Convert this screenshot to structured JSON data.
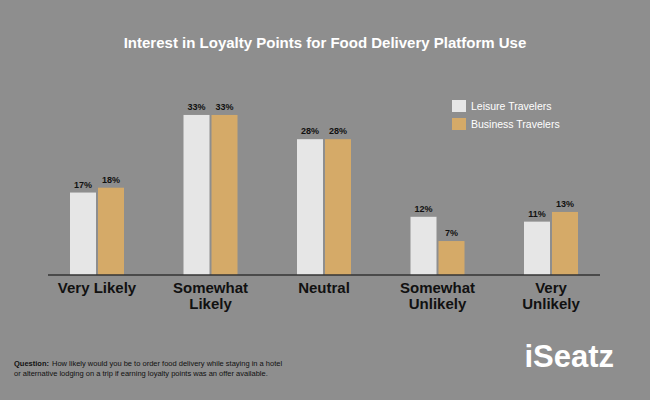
{
  "chart_data": {
    "type": "bar",
    "title": "Interest in Loyalty Points for Food Delivery Platform Use",
    "categories": [
      "Very Likely",
      "Somewhat\nLikely",
      "Neutral",
      "Somewhat\nUnlikely",
      "Very\nUnlikely"
    ],
    "series": [
      {
        "name": "Leisure Travelers",
        "color": "#e6e6e6",
        "values": [
          17,
          33,
          28,
          12,
          11
        ],
        "value_labels": [
          "17%",
          "33%",
          "28%",
          "12%",
          "11%"
        ]
      },
      {
        "name": "Business Travelers",
        "color": "#d5aa68",
        "values": [
          18,
          33,
          28,
          7,
          13
        ],
        "value_labels": [
          "18%",
          "33%",
          "28%",
          "7%",
          "13%"
        ]
      }
    ],
    "ylim": [
      0,
      40
    ],
    "grid": false,
    "legend": "upper right",
    "data_labels": true,
    "tick_labels": "x",
    "note_label": "Question:",
    "note": [
      "How likely would you be to order food delivery while staying in a hotel",
      "or alternative lodging on a trip if earning loyalty points was an offer available."
    ],
    "logo": "iSeatz"
  }
}
